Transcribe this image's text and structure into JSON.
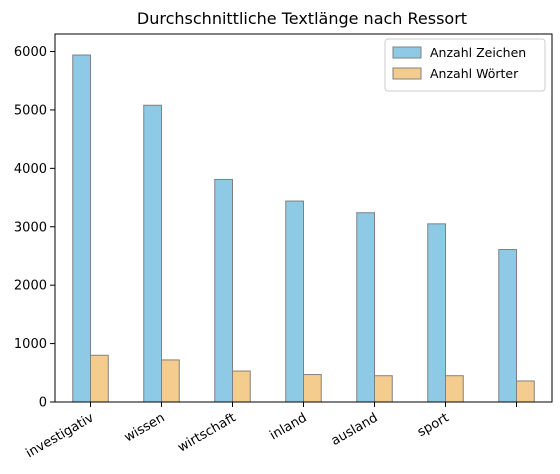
{
  "chart_data": {
    "type": "bar",
    "title": "Durchschnittliche Textlänge nach Ressort",
    "xlabel": "",
    "ylabel": "",
    "categories": [
      "investigativ",
      "wissen",
      "wirtschaft",
      "inland",
      "ausland",
      "sport",
      ""
    ],
    "series": [
      {
        "name": "Anzahl Zeichen",
        "color": "#8ecae6",
        "values": [
          5940,
          5080,
          3810,
          3440,
          3240,
          3050,
          2610
        ]
      },
      {
        "name": "Anzahl Wörter",
        "color": "#f4cc8e",
        "values": [
          800,
          720,
          530,
          470,
          450,
          450,
          360
        ]
      }
    ],
    "ylim": [
      0,
      6300
    ],
    "yticks": [
      0,
      1000,
      2000,
      3000,
      4000,
      5000,
      6000
    ],
    "grid": false,
    "legend_position": "top-right",
    "bar_edge_color": "#808080"
  }
}
